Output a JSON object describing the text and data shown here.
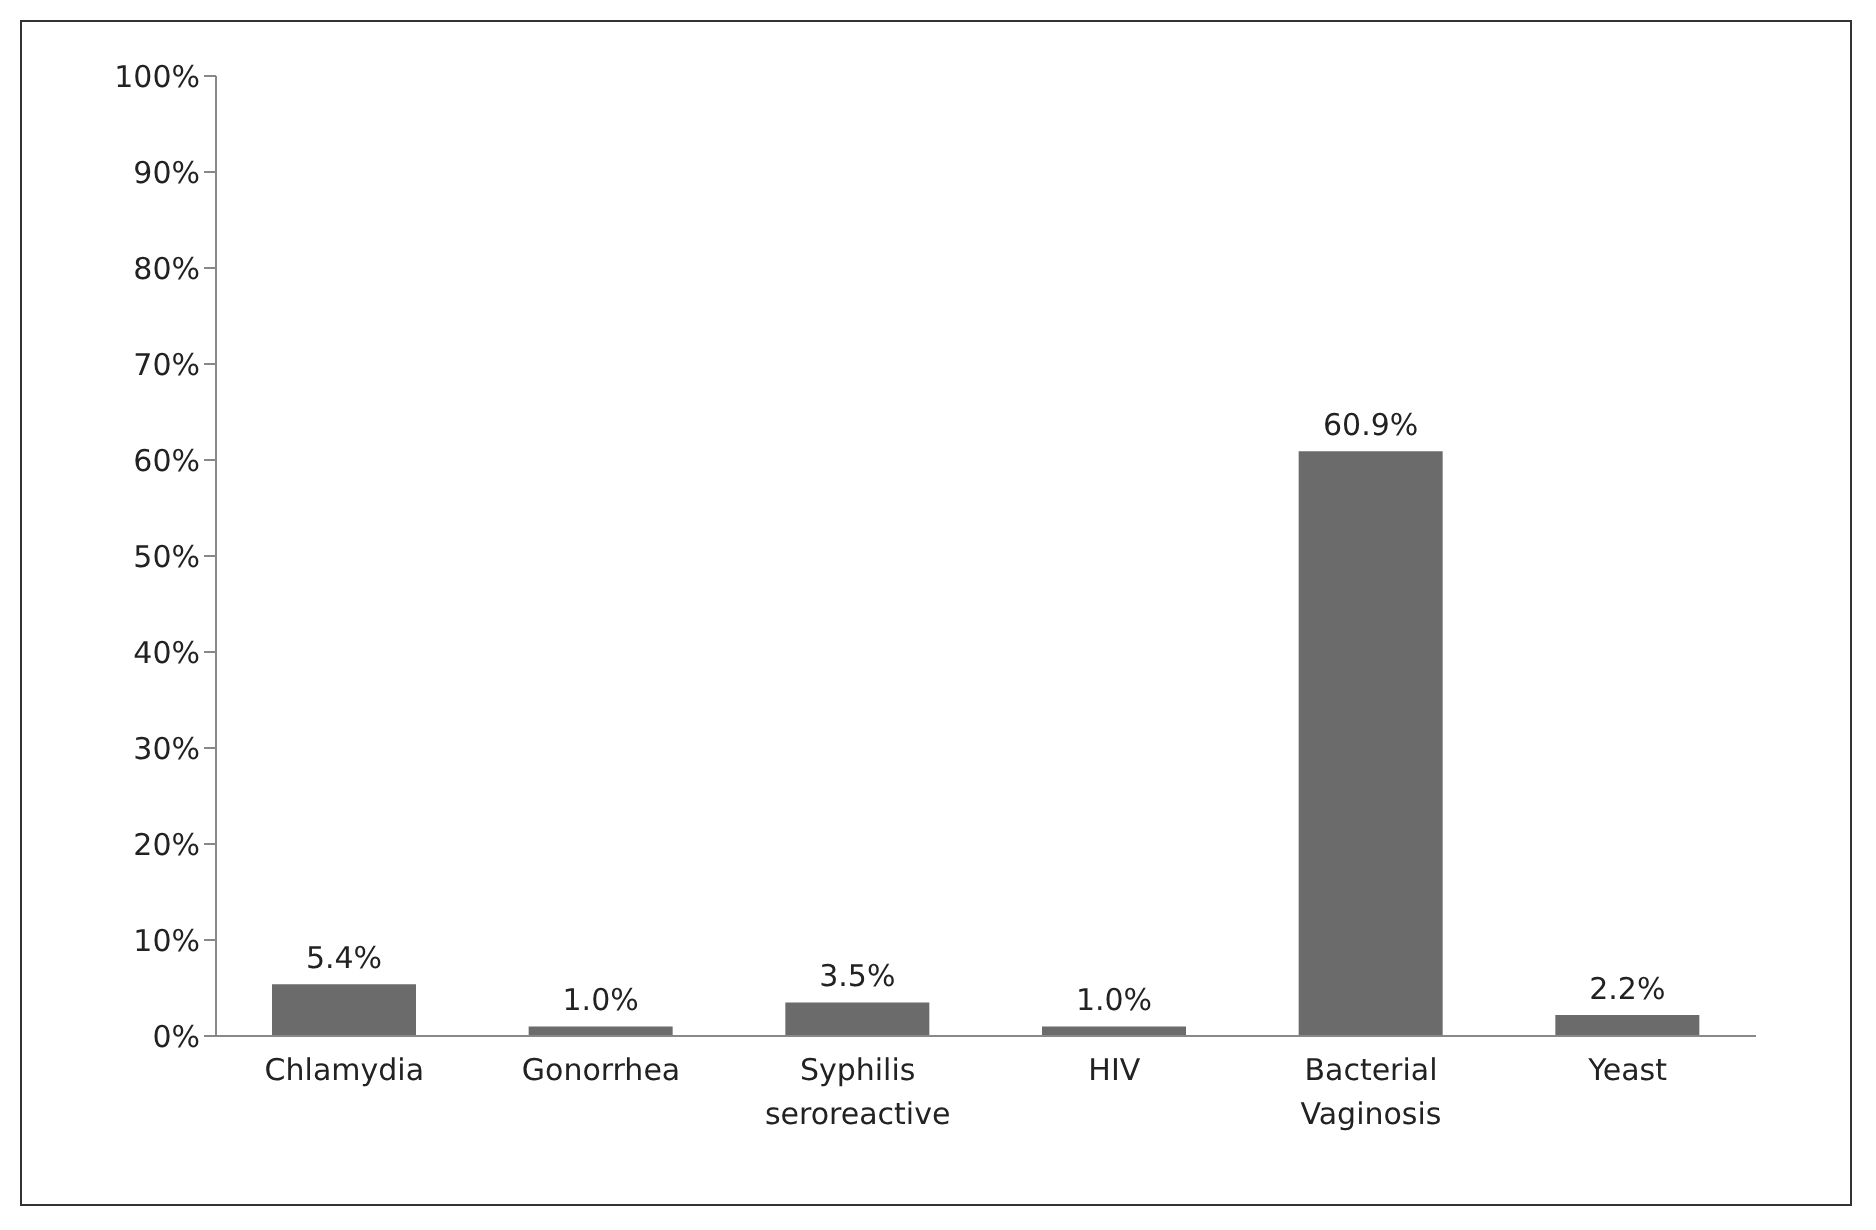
{
  "chart_data": {
    "type": "bar",
    "categories": [
      "Chlamydia",
      "Gonorrhea",
      "Syphilis seroreactive",
      "HIV",
      "Bacterial Vaginosis",
      "Yeast"
    ],
    "values": [
      5.4,
      1.0,
      3.5,
      1.0,
      60.9,
      2.2
    ],
    "value_labels": [
      "5.4%",
      "1.0%",
      "3.5%",
      "1.0%",
      "60.9%",
      "2.2%"
    ],
    "color": "#6b6b6b",
    "ylim": [
      0,
      100
    ],
    "yticks": [
      {
        "value": 0,
        "label": "0%"
      },
      {
        "value": 10,
        "label": "10%"
      },
      {
        "value": 20,
        "label": "20%"
      },
      {
        "value": 30,
        "label": "30%"
      },
      {
        "value": 40,
        "label": "40%"
      },
      {
        "value": 50,
        "label": "50%"
      },
      {
        "value": 60,
        "label": "60%"
      },
      {
        "value": 70,
        "label": "70%"
      },
      {
        "value": 80,
        "label": "80%"
      },
      {
        "value": 90,
        "label": "90%"
      },
      {
        "value": 100,
        "label": "100%"
      }
    ],
    "grid": false,
    "legend": false
  }
}
